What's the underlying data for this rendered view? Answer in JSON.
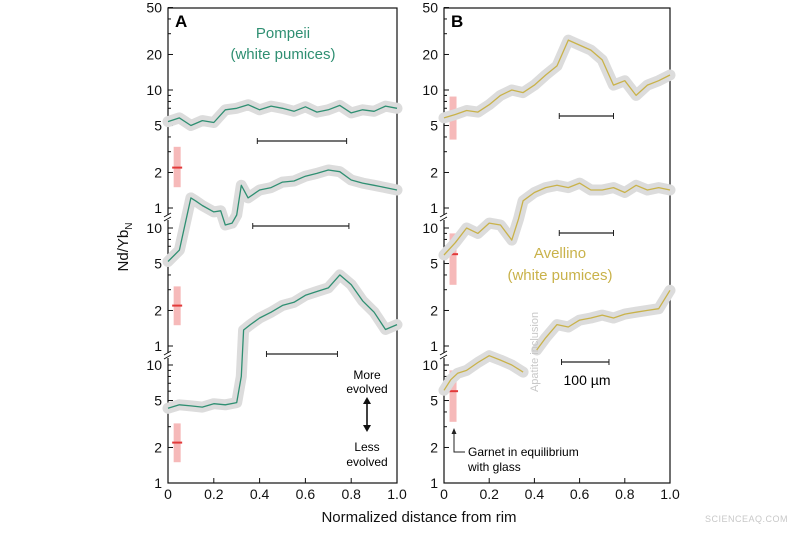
{
  "chart_data": {
    "type": "line",
    "xlabel": "Normalized distance from rim",
    "ylabel": "Nd/Yb",
    "ylabel_sub": "N",
    "xlim": [
      0,
      1.0
    ],
    "x_ticks": [
      "0",
      "0.2",
      "0.4",
      "0.6",
      "0.8",
      "1.0"
    ],
    "y_scale": "log",
    "y_ticks_top": [
      "50",
      "20",
      "10",
      "5",
      "2",
      "1"
    ],
    "y_ticks_middle": [
      "10",
      "5",
      "2",
      "1"
    ],
    "y_ticks_bottom": [
      "10",
      "5",
      "2",
      "1"
    ],
    "colors": {
      "pompeii": "#2f8f72",
      "avellino": "#c9b24a",
      "band": "#dcdcdc",
      "garnet": "#e23a3a",
      "garnet_range": "#f6b9b9"
    },
    "panels": [
      {
        "letter": "A",
        "title_line1": "Pompeii",
        "title_line2": "(white pumices)",
        "series": [
          {
            "level": "top",
            "x": [
              0,
              0.05,
              0.1,
              0.15,
              0.2,
              0.25,
              0.3,
              0.35,
              0.4,
              0.45,
              0.5,
              0.55,
              0.6,
              0.65,
              0.7,
              0.75,
              0.8,
              0.85,
              0.9,
              0.95,
              1.0
            ],
            "y": [
              5.4,
              5.8,
              5.0,
              5.5,
              5.3,
              6.8,
              7.0,
              7.5,
              6.8,
              7.3,
              7.0,
              6.6,
              7.2,
              6.5,
              6.8,
              7.4,
              6.4,
              6.8,
              6.6,
              7.3,
              7.0
            ]
          },
          {
            "level": "middle",
            "x": [
              0,
              0.05,
              0.08,
              0.1,
              0.12,
              0.15,
              0.2,
              0.23,
              0.25,
              0.28,
              0.3,
              0.32,
              0.35,
              0.4,
              0.45,
              0.5,
              0.55,
              0.6,
              0.65,
              0.7,
              0.75,
              0.8,
              0.85,
              0.9,
              0.95,
              1.0
            ],
            "y": [
              5.2,
              6.5,
              12,
              18,
              17,
              15.5,
              13.7,
              14,
              10.6,
              11,
              12.9,
              23,
              18,
              21,
              22,
              24.5,
              25,
              27.5,
              29,
              31,
              30,
              25.5,
              24,
              23,
              22,
              21
            ]
          },
          {
            "level": "bottom",
            "x": [
              0,
              0.05,
              0.1,
              0.15,
              0.2,
              0.25,
              0.3,
              0.32,
              0.33,
              0.36,
              0.4,
              0.45,
              0.5,
              0.55,
              0.6,
              0.65,
              0.7,
              0.75,
              0.8,
              0.85,
              0.9,
              0.95,
              1.0
            ],
            "y": [
              4.3,
              4.6,
              4.5,
              4.4,
              4.7,
              4.6,
              4.8,
              8,
              19.8,
              22,
              25,
              28,
              32,
              34,
              39,
              42,
              45,
              58,
              48,
              35,
              28,
              20,
              22
            ]
          }
        ],
        "garnet": [
          {
            "level": "top",
            "value": 2.2,
            "range": [
              1.5,
              3.3
            ]
          },
          {
            "level": "middle",
            "value": 2.2,
            "range": [
              1.5,
              3.2
            ]
          },
          {
            "level": "bottom",
            "value": 2.2,
            "range": [
              1.5,
              3.2
            ]
          }
        ],
        "scale_bars": [
          {
            "level": "top",
            "from": 0.39,
            "to": 0.78
          },
          {
            "level": "middle",
            "from": 0.37,
            "to": 0.79
          },
          {
            "level": "bottom",
            "from": 0.43,
            "to": 0.74
          }
        ],
        "annotations": {
          "more_line1": "More",
          "more_line2": "evolved",
          "less_line1": "Less",
          "less_line2": "evolved"
        }
      },
      {
        "letter": "B",
        "title_line1": "Avellino",
        "title_line2": "(white pumices)",
        "series": [
          {
            "level": "top",
            "x": [
              0,
              0.05,
              0.1,
              0.15,
              0.2,
              0.25,
              0.3,
              0.35,
              0.4,
              0.45,
              0.5,
              0.55,
              0.6,
              0.65,
              0.7,
              0.75,
              0.8,
              0.85,
              0.9,
              0.95,
              1.0
            ],
            "y": [
              5.8,
              6.2,
              6.7,
              6.5,
              7.5,
              9,
              10,
              9.5,
              11,
              13.4,
              16,
              26.5,
              24,
              21.8,
              18,
              11,
              12,
              9,
              11,
              12,
              13.4
            ]
          },
          {
            "level": "middle",
            "x": [
              0,
              0.05,
              0.1,
              0.15,
              0.2,
              0.25,
              0.3,
              0.33,
              0.35,
              0.4,
              0.45,
              0.5,
              0.55,
              0.6,
              0.65,
              0.7,
              0.75,
              0.8,
              0.85,
              0.9,
              0.95,
              1.0
            ],
            "y": [
              5.9,
              7.5,
              10,
              9,
              11,
              10.6,
              7.9,
              12,
              17,
              20,
              22,
              23,
              22,
              24,
              21,
              21,
              22,
              20,
              23,
              21,
              22,
              21
            ]
          },
          {
            "level": "bottom",
            "x": [
              0,
              0.03,
              0.06,
              0.1,
              0.15,
              0.2,
              0.25,
              0.3,
              0.35
            ],
            "y": [
              6.1,
              7.5,
              8.5,
              9,
              10.5,
              12,
              11,
              10,
              8.7
            ]
          },
          {
            "level": "bottom",
            "x": [
              0.41,
              0.45,
              0.5,
              0.55,
              0.6,
              0.65,
              0.7,
              0.75,
              0.8,
              0.85,
              0.9,
              0.95,
              1.0
            ],
            "y": [
              13.4,
              17,
              22,
              21,
              24,
              25,
              26.5,
              25,
              27,
              28,
              29,
              30,
              43
            ]
          }
        ],
        "garnet": [
          {
            "level": "top",
            "value": 6.0,
            "range": [
              3.8,
              8.8
            ]
          },
          {
            "level": "middle",
            "value": 6.0,
            "range": [
              3.3,
              9.0
            ]
          },
          {
            "level": "bottom",
            "value": 6.0,
            "range": [
              3.3,
              9.0
            ]
          }
        ],
        "scale_bars": [
          {
            "level": "top",
            "from": 0.51,
            "to": 0.75
          },
          {
            "level": "middle",
            "from": 0.51,
            "to": 0.75
          },
          {
            "level": "bottom",
            "from": 0.52,
            "to": 0.73
          }
        ],
        "annotations": {
          "scale_label": "100 µm",
          "apatite": "Apatite inclusion",
          "garnet_line1": "Garnet in equilibrium",
          "garnet_line2": "with glass"
        }
      }
    ]
  },
  "watermark": "SCIENCEAQ.COM"
}
